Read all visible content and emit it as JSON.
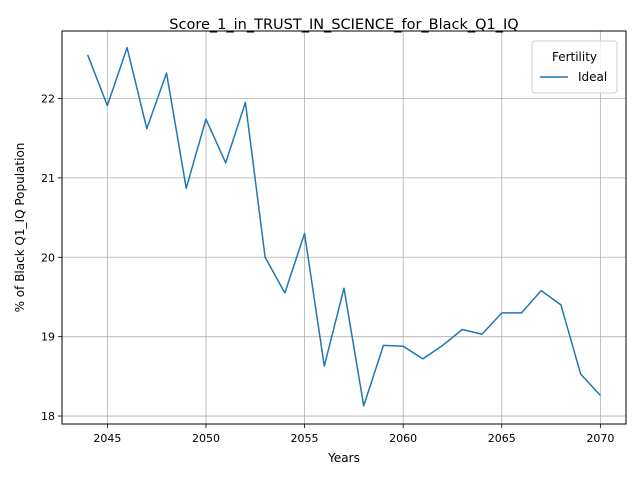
{
  "chart_data": {
    "type": "line",
    "title": "Score_1_in_TRUST_IN_SCIENCE_for_Black_Q1_IQ",
    "xlabel": "Years",
    "ylabel": "% of Black Q1_IQ Population",
    "xlim": [
      2042.7,
      2071.3
    ],
    "ylim": [
      17.9,
      22.85
    ],
    "x_ticks": [
      2045,
      2050,
      2055,
      2060,
      2065,
      2070
    ],
    "y_ticks": [
      18,
      19,
      20,
      21,
      22
    ],
    "grid": true,
    "legend": {
      "title": "Fertility",
      "placement": "top-right"
    },
    "x": [
      2044,
      2045,
      2046,
      2047,
      2048,
      2049,
      2050,
      2051,
      2052,
      2053,
      2054,
      2055,
      2056,
      2057,
      2058,
      2059,
      2060,
      2061,
      2062,
      2063,
      2064,
      2065,
      2066,
      2067,
      2068,
      2069,
      2070
    ],
    "series": [
      {
        "name": "Ideal",
        "color": "#1f77b4",
        "values": [
          22.55,
          21.91,
          22.64,
          21.62,
          22.32,
          20.87,
          21.74,
          21.19,
          21.95,
          20.0,
          19.55,
          20.3,
          18.63,
          19.61,
          18.13,
          18.89,
          18.88,
          18.72,
          18.89,
          19.09,
          19.03,
          19.3,
          19.3,
          19.58,
          19.4,
          18.53,
          18.26
        ]
      }
    ]
  }
}
